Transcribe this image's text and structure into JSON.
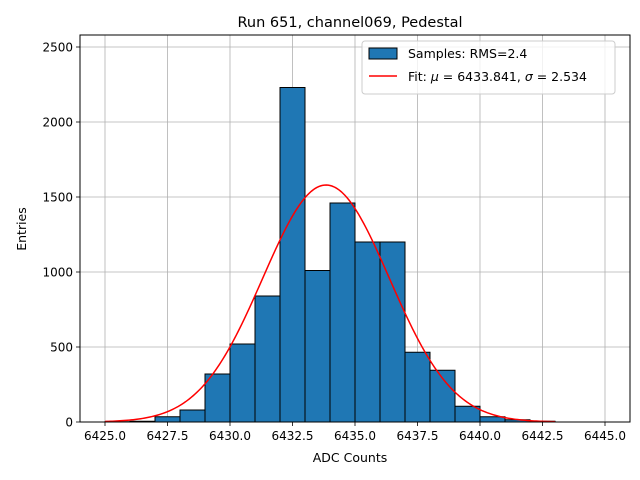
{
  "chart_data": {
    "type": "bar",
    "title": "Run 651, channel069, Pedestal",
    "xlabel": "ADC Counts",
    "ylabel": "Entries",
    "xlim": [
      6424.0,
      6446.0
    ],
    "ylim": [
      0,
      2580
    ],
    "xticks": [
      6425.0,
      6427.5,
      6430.0,
      6432.5,
      6435.0,
      6437.5,
      6440.0,
      6442.5,
      6445.0
    ],
    "xtick_labels": [
      "6425.0",
      "6427.5",
      "6430.0",
      "6432.5",
      "6435.0",
      "6437.5",
      "6440.0",
      "6442.5",
      "6445.0"
    ],
    "yticks": [
      0,
      500,
      1000,
      1500,
      2000,
      2500
    ],
    "ytick_labels": [
      "0",
      "500",
      "1000",
      "1500",
      "2000",
      "2500"
    ],
    "grid": true,
    "legend_position": "top-right",
    "histogram": {
      "name": "Samples: RMS=2.4",
      "color": "#1f77b4",
      "edge_color": "#000000",
      "bin_edges": [
        6425,
        6426,
        6427,
        6428,
        6429,
        6430,
        6431,
        6432,
        6433,
        6434,
        6435,
        6436,
        6437,
        6438,
        6439,
        6440,
        6441,
        6442,
        6443
      ],
      "counts": [
        2,
        5,
        35,
        80,
        320,
        520,
        840,
        2230,
        1010,
        1460,
        1200,
        1200,
        465,
        345,
        105,
        35,
        15,
        5
      ]
    },
    "fit": {
      "name": "Fit: μ = 6433.841, σ = 2.534",
      "label_parts": [
        "Fit: ",
        "μ",
        " = 6433.841, ",
        "σ",
        " = 2.534"
      ],
      "color": "#ff0000",
      "mu": 6433.841,
      "sigma": 2.534,
      "peak": 1580,
      "x_range": [
        6425,
        6443
      ]
    }
  }
}
